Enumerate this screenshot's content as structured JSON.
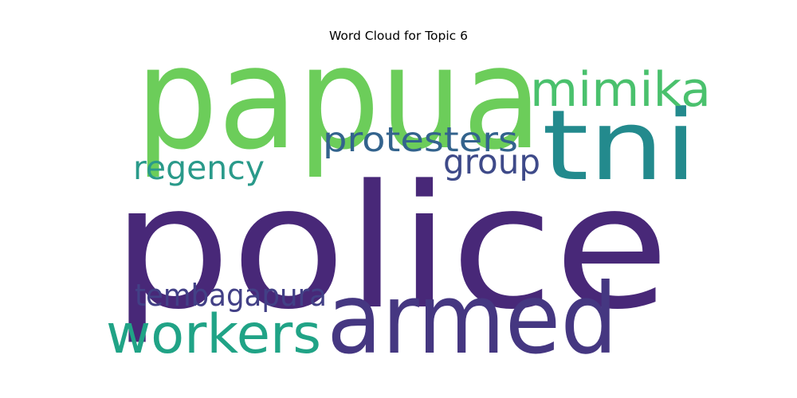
{
  "title": "Word Cloud for Topic 6",
  "words": [
    {
      "text": "police",
      "color": "#482878"
    },
    {
      "text": "papua",
      "color": "#6ccd5a"
    },
    {
      "text": "armed",
      "color": "#453781"
    },
    {
      "text": "tni",
      "color": "#238a8d"
    },
    {
      "text": "workers",
      "color": "#20a386"
    },
    {
      "text": "mimika",
      "color": "#4ac16d"
    },
    {
      "text": "protesters",
      "color": "#33638d"
    },
    {
      "text": "group",
      "color": "#3e4a89"
    },
    {
      "text": "regency",
      "color": "#2a9a8a"
    },
    {
      "text": "tembagapura",
      "color": "#424086"
    }
  ]
}
